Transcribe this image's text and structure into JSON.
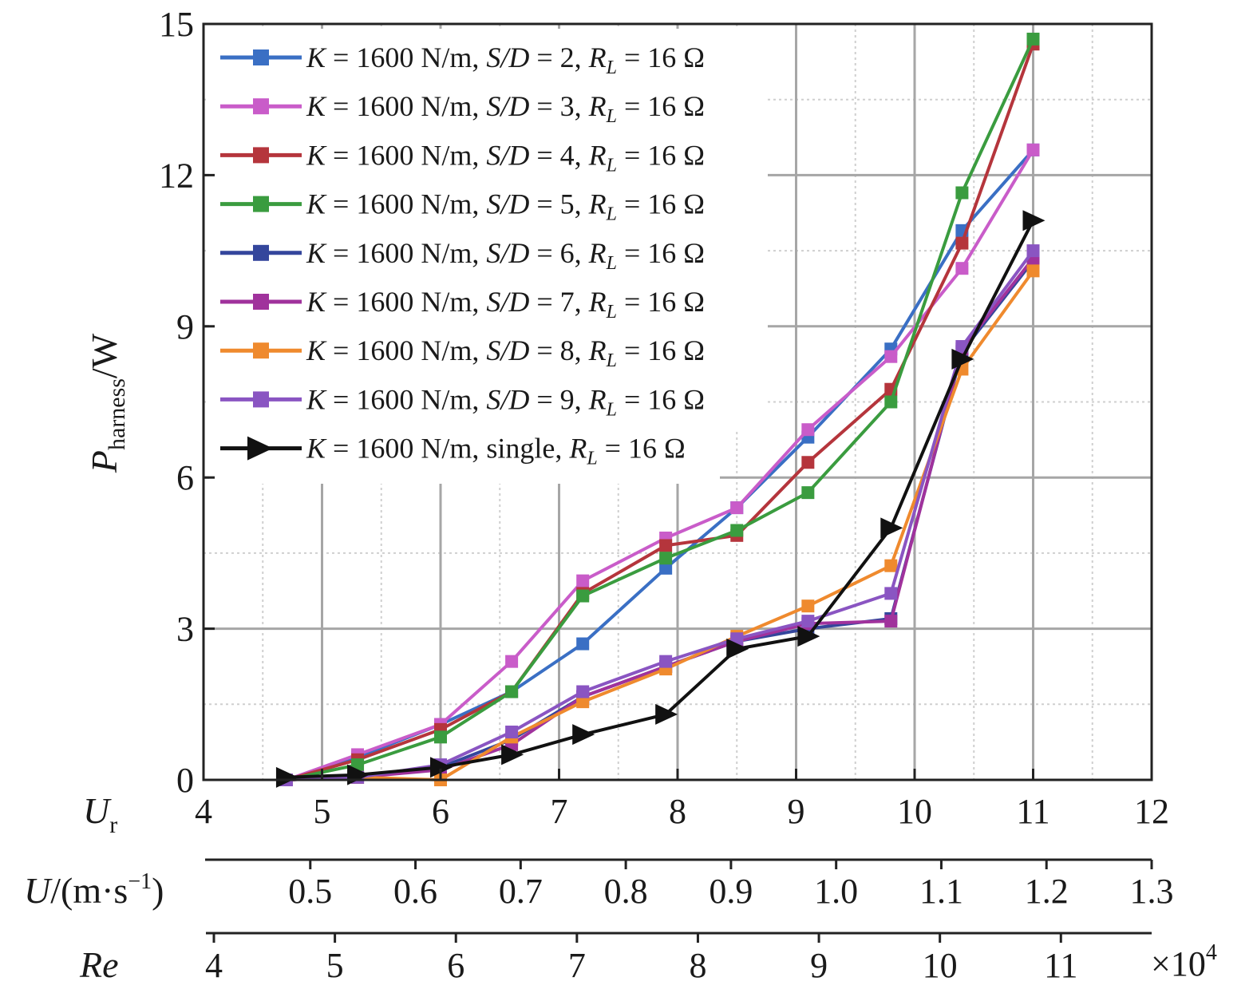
{
  "chart_data": {
    "type": "line",
    "ylabel": {
      "main": "P",
      "sub": "harness",
      "unit": "/W"
    },
    "ylim": [
      0,
      15
    ],
    "yticks": [
      0,
      3,
      6,
      9,
      12,
      15
    ],
    "grid": true,
    "legend_position": "top-left",
    "x_axes": [
      {
        "label_main": "U",
        "label_sub": "r",
        "range": [
          4,
          12
        ],
        "ticks": [
          "4",
          "5",
          "6",
          "7",
          "8",
          "9",
          "10",
          "11",
          "12"
        ]
      },
      {
        "label_main": "U",
        "label_rest": "/(m·s",
        "label_sup": "−1",
        "label_close": ")",
        "range": [
          0.4,
          1.3
        ],
        "ticks": [
          "0.5",
          "0.6",
          "0.7",
          "0.8",
          "0.9",
          "1.0",
          "1.1",
          "1.2",
          "1.3"
        ]
      },
      {
        "label_main": "Re",
        "range": [
          4,
          11.75
        ],
        "ticks": [
          "4",
          "5",
          "6",
          "7",
          "8",
          "9",
          "10",
          "11"
        ],
        "multiplier_text": "×10",
        "multiplier_sup": "4"
      }
    ],
    "x": [
      4.7,
      5.3,
      6.0,
      6.6,
      7.2,
      7.9,
      8.5,
      9.1,
      9.8,
      10.4,
      11.0
    ],
    "series": [
      {
        "name": "K = 1600 N/m, S/D = 2, RL = 16 Ω",
        "label_k": "K",
        "label_mid": " = 1600 N/m, ",
        "label_sd": "S/D",
        "label_eq": " = 2, ",
        "label_r": "R",
        "label_rsub": "L",
        "label_tail": " = 16 Ω",
        "color": "#3a6fc4",
        "marker": "square",
        "values": [
          0.0,
          0.45,
          1.1,
          1.75,
          2.7,
          4.2,
          5.4,
          6.8,
          8.55,
          10.9,
          12.5
        ]
      },
      {
        "name": "K = 1600 N/m, S/D = 3, RL = 16 Ω",
        "label_k": "K",
        "label_mid": " = 1600 N/m, ",
        "label_sd": "S/D",
        "label_eq": " = 3, ",
        "label_r": "R",
        "label_rsub": "L",
        "label_tail": " = 16 Ω",
        "color": "#c95cc9",
        "marker": "square",
        "values": [
          0.0,
          0.5,
          1.1,
          2.35,
          3.95,
          4.8,
          5.4,
          6.95,
          8.4,
          10.15,
          12.5
        ]
      },
      {
        "name": "K = 1600 N/m, S/D = 4, RL = 16 Ω",
        "label_k": "K",
        "label_mid": " = 1600 N/m, ",
        "label_sd": "S/D",
        "label_eq": " = 4, ",
        "label_r": "R",
        "label_rsub": "L",
        "label_tail": " = 16 Ω",
        "color": "#b5353c",
        "marker": "square",
        "values": [
          0.0,
          0.4,
          1.0,
          1.75,
          3.7,
          4.65,
          4.85,
          6.3,
          7.75,
          10.65,
          14.6
        ]
      },
      {
        "name": "K = 1600 N/m, S/D = 5, RL = 16 Ω",
        "label_k": "K",
        "label_mid": " = 1600 N/m, ",
        "label_sd": "S/D",
        "label_eq": " = 5, ",
        "label_r": "R",
        "label_rsub": "L",
        "label_tail": " = 16 Ω",
        "color": "#3a9c3f",
        "marker": "square",
        "values": [
          0.0,
          0.3,
          0.85,
          1.75,
          3.65,
          4.4,
          4.95,
          5.7,
          7.5,
          11.65,
          14.7
        ]
      },
      {
        "name": "K = 1600 N/m, S/D = 6, RL = 16 Ω",
        "label_k": "K",
        "label_mid": " = 1600 N/m, ",
        "label_sd": "S/D",
        "label_eq": " = 6, ",
        "label_r": "R",
        "label_rsub": "L",
        "label_tail": " = 16 Ω",
        "color": "#34469c",
        "marker": "square",
        "values": [
          0.0,
          0.05,
          0.25,
          0.8,
          1.65,
          2.25,
          2.75,
          3.0,
          3.2,
          8.5,
          10.3
        ]
      },
      {
        "name": "K = 1600 N/m, S/D = 7, RL = 16 Ω",
        "label_k": "K",
        "label_mid": " = 1600 N/m, ",
        "label_sd": "S/D",
        "label_eq": " = 7, ",
        "label_r": "R",
        "label_rsub": "L",
        "label_tail": " = 16 Ω",
        "color": "#a0329c",
        "marker": "square",
        "values": [
          0.0,
          0.05,
          0.2,
          0.7,
          1.65,
          2.25,
          2.75,
          3.1,
          3.15,
          8.55,
          10.35
        ]
      },
      {
        "name": "K = 1600 N/m, S/D = 8, RL = 16 Ω",
        "label_k": "K",
        "label_mid": " = 1600 N/m, ",
        "label_sd": "S/D",
        "label_eq": " = 8, ",
        "label_r": "R",
        "label_rsub": "L",
        "label_tail": " = 16 Ω",
        "color": "#ef8a2e",
        "marker": "square",
        "values": [
          0.0,
          0.05,
          0.0,
          0.85,
          1.55,
          2.2,
          2.85,
          3.45,
          4.25,
          8.15,
          10.1
        ]
      },
      {
        "name": "K = 1600 N/m, S/D = 9, RL = 16 Ω",
        "label_k": "K",
        "label_mid": " = 1600 N/m, ",
        "label_sd": "S/D",
        "label_eq": " = 9, ",
        "label_r": "R",
        "label_rsub": "L",
        "label_tail": " = 16 Ω",
        "color": "#8a55c2",
        "marker": "square",
        "values": [
          0.0,
          0.05,
          0.3,
          0.95,
          1.75,
          2.35,
          2.8,
          3.15,
          3.7,
          8.6,
          10.5
        ]
      },
      {
        "name": "K = 1600 N/m, single, RL = 16 Ω",
        "label_k": "K",
        "label_mid": " = 1600 N/m, single, ",
        "label_sd": "",
        "label_eq": "",
        "label_r": "R",
        "label_rsub": "L",
        "label_tail": " = 16 Ω",
        "color": "#111111",
        "marker": "triangle-right",
        "values": [
          0.05,
          0.1,
          0.25,
          0.5,
          0.9,
          1.3,
          2.6,
          2.85,
          5.0,
          8.35,
          11.1
        ]
      }
    ]
  }
}
